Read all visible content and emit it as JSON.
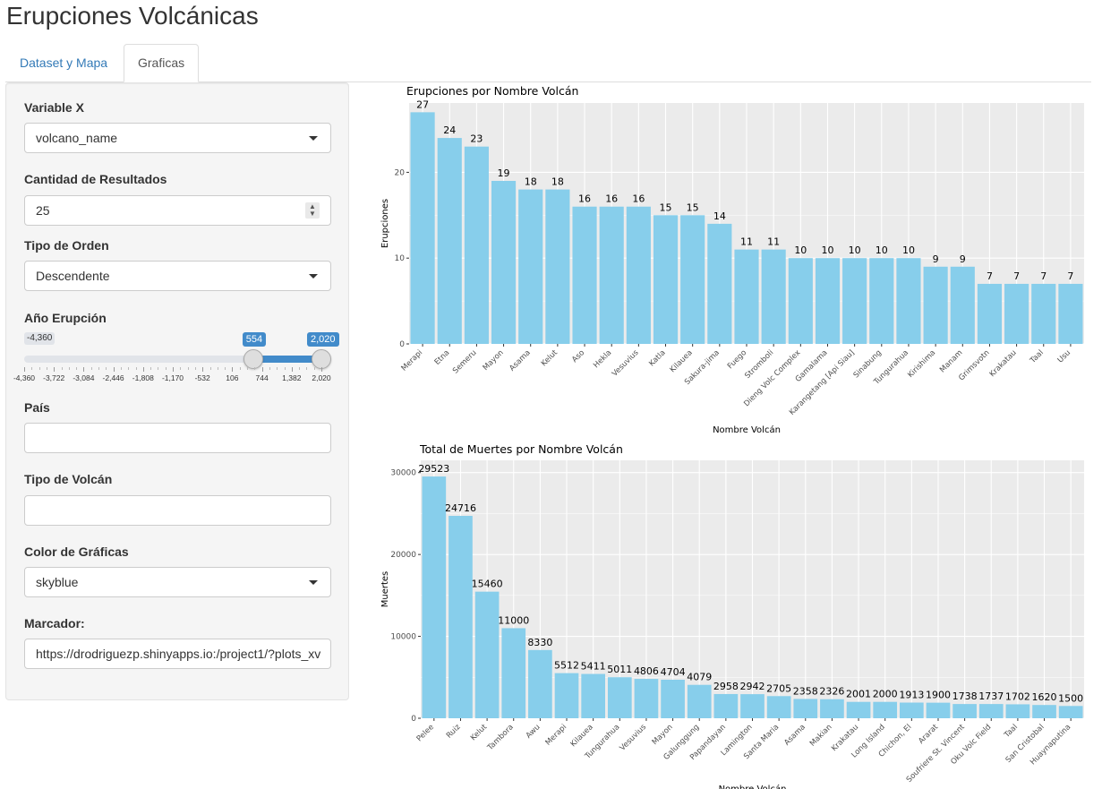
{
  "app": {
    "title": "Erupciones Volcánicas"
  },
  "tabs": [
    {
      "label": "Dataset y Mapa",
      "active": false
    },
    {
      "label": "Graficas",
      "active": true
    }
  ],
  "sidebar": {
    "variable_x": {
      "label": "Variable X",
      "value": "volcano_name"
    },
    "cantidad": {
      "label": "Cantidad de Resultados",
      "value": "25"
    },
    "orden": {
      "label": "Tipo de Orden",
      "value": "Descendente"
    },
    "anio": {
      "label": "Año Erupción",
      "min": -4360,
      "max": 2020,
      "from": 554,
      "to": 2020,
      "min_label": "-4,360",
      "from_label": "554",
      "to_label": "2,020",
      "grid_labels": [
        "-4,360",
        "-3,722",
        "-3,084",
        "-2,446",
        "-1,808",
        "-1,170",
        "-532",
        "106",
        "744",
        "1,382",
        "2,020"
      ]
    },
    "pais": {
      "label": "País",
      "value": ""
    },
    "tipo_volcan": {
      "label": "Tipo de Volcán",
      "value": ""
    },
    "color": {
      "label": "Color de Gráficas",
      "value": "skyblue"
    },
    "marcador": {
      "label": "Marcador:",
      "value": "https://drodriguezp.shinyapps.io:/project1/?plots_xv"
    }
  },
  "colors": {
    "bar": "#87CEEB",
    "panel": "#EBEBEB",
    "grid": "#FFFFFF",
    "accent": "#428bca",
    "link": "#337ab7"
  },
  "chart_data": [
    {
      "type": "bar",
      "title": "Erupciones por Nombre Volcán",
      "xlabel": "Nombre Volcán",
      "ylabel": "Erupciones",
      "ylim": [
        0,
        27
      ],
      "yticks": [
        0,
        10,
        20
      ],
      "grid": true,
      "categories": [
        "Merapi",
        "Etna",
        "Semeru",
        "Mayon",
        "Asama",
        "Kelut",
        "Aso",
        "Hekla",
        "Vesuvius",
        "Katla",
        "Kilauea",
        "Sakura-jima",
        "Fuego",
        "Stromboli",
        "Dieng Volc Complex",
        "Gamalama",
        "Karangetang [Api Siau]",
        "Sinabung",
        "Tungurahua",
        "Kirishima",
        "Manam",
        "Grimsvotn",
        "Krakatau",
        "Taal",
        "Usu"
      ],
      "values": [
        27,
        24,
        23,
        19,
        18,
        18,
        16,
        16,
        16,
        15,
        15,
        14,
        11,
        11,
        10,
        10,
        10,
        10,
        10,
        9,
        9,
        7,
        7,
        7,
        7
      ]
    },
    {
      "type": "bar",
      "title": "Total de Muertes por Nombre Volcán",
      "xlabel": "Nombre Volcán",
      "ylabel": "Muertes",
      "ylim": [
        0,
        30000
      ],
      "yticks": [
        0,
        10000,
        20000,
        30000
      ],
      "grid": true,
      "categories": [
        "Pelee",
        "Ruiz",
        "Kelut",
        "Tambora",
        "Awu",
        "Merapi",
        "Kilauea",
        "Tungurahua",
        "Vesuvius",
        "Mayon",
        "Galunggung",
        "Papandayan",
        "Lamington",
        "Santa Maria",
        "Asama",
        "Makian",
        "Krakatau",
        "Long Island",
        "Chichon, El",
        "Ararat",
        "Soufriere St. Vincent",
        "Oku Volc Field",
        "Taal",
        "San Cristobal",
        "Huaynaputina"
      ],
      "values": [
        29523,
        24716,
        15460,
        11000,
        8330,
        5512,
        5411,
        5011,
        4806,
        4704,
        4079,
        2958,
        2942,
        2705,
        2358,
        2326,
        2001,
        2000,
        1913,
        1900,
        1738,
        1737,
        1702,
        1620,
        1500
      ]
    }
  ]
}
